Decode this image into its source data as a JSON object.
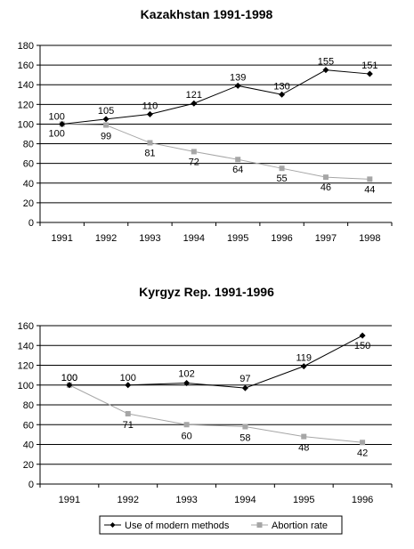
{
  "chart_data": [
    {
      "type": "line",
      "title": "Kazakhstan 1991-1998",
      "categories": [
        "1991",
        "1992",
        "1993",
        "1994",
        "1995",
        "1996",
        "1997",
        "1998"
      ],
      "ylim": [
        0,
        180
      ],
      "yticks": [
        0,
        20,
        40,
        60,
        80,
        100,
        120,
        140,
        160,
        180
      ],
      "grid": true,
      "series": [
        {
          "name": "Use of modern methods",
          "color": "#000000",
          "marker": "diamond",
          "values": [
            100,
            105,
            110,
            121,
            139,
            130,
            155,
            151
          ],
          "labels": [
            "100",
            "105",
            "110",
            "121",
            "139",
            "130",
            "155",
            "151"
          ]
        },
        {
          "name": "Abortion rate",
          "color": "#a6a6a6",
          "marker": "square",
          "values": [
            100,
            99,
            81,
            72,
            64,
            55,
            46,
            44
          ],
          "labels": [
            "100",
            "99",
            "81",
            "72",
            "64",
            "55",
            "46",
            "44"
          ]
        }
      ]
    },
    {
      "type": "line",
      "title": "Kyrgyz Rep. 1991-1996",
      "categories": [
        "1991",
        "1992",
        "1993",
        "1994",
        "1995",
        "1996"
      ],
      "ylim": [
        0,
        160
      ],
      "yticks": [
        0,
        20,
        40,
        60,
        80,
        100,
        120,
        140,
        160
      ],
      "grid": true,
      "legend_position": "bottom",
      "series": [
        {
          "name": "Use of modern methods",
          "color": "#000000",
          "marker": "diamond",
          "values": [
            100,
            100,
            102,
            97,
            119,
            150
          ],
          "labels": [
            "100",
            "100",
            "102",
            "97",
            "119",
            "150"
          ]
        },
        {
          "name": "Abortion rate",
          "color": "#a6a6a6",
          "marker": "square",
          "values": [
            100,
            71,
            60,
            58,
            48,
            42
          ],
          "labels": [
            "100",
            "71",
            "60",
            "58",
            "48",
            "42"
          ]
        }
      ]
    }
  ]
}
